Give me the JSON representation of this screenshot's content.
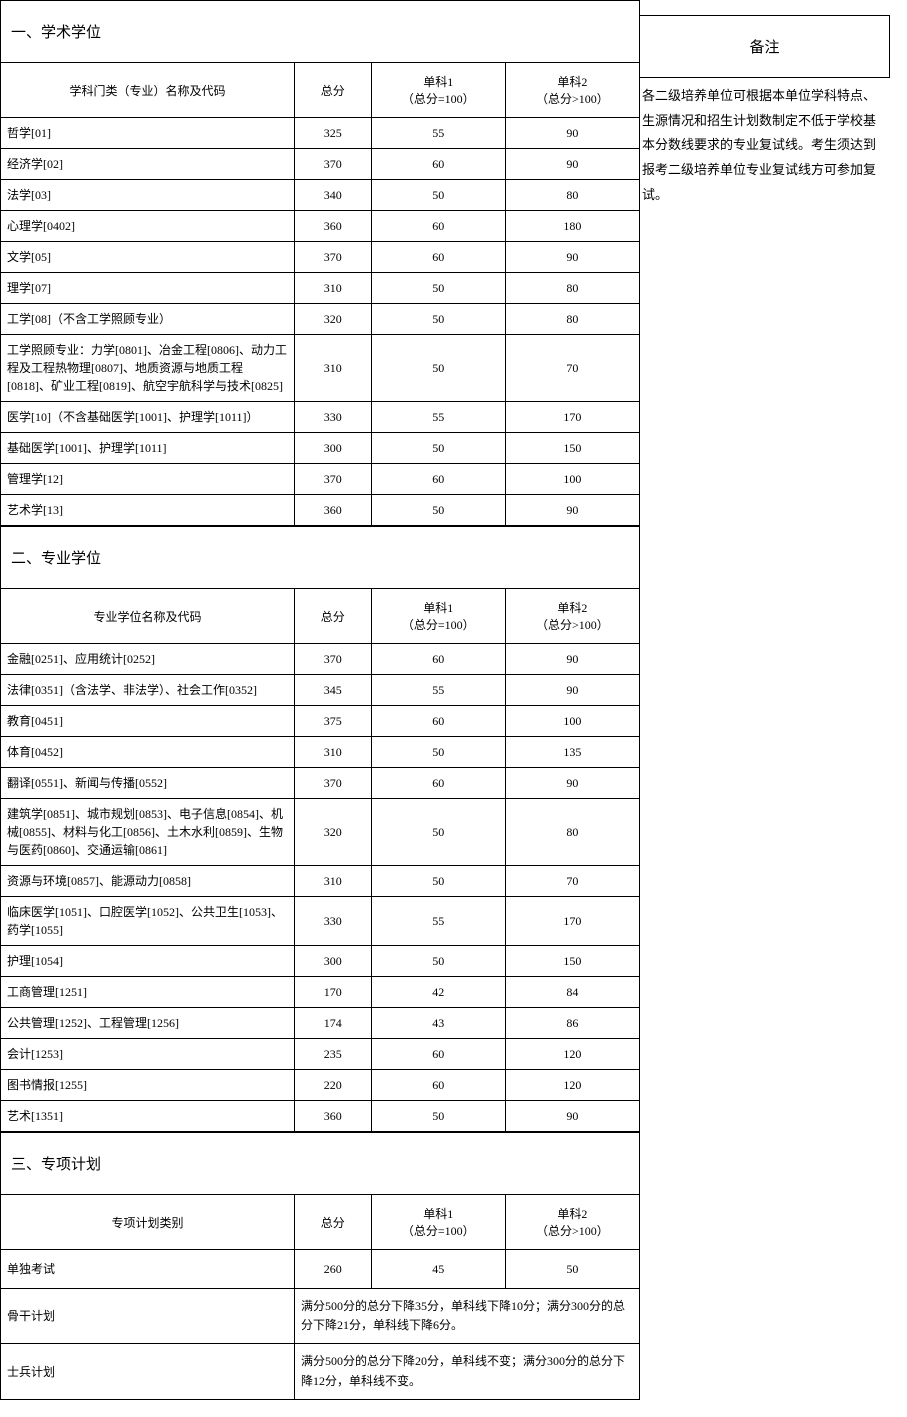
{
  "notes_header": "备注",
  "notes_text": "各二级培养单位可根据本单位学科特点、生源情况和招生计划数制定不低于学校基本分数线要求的专业复试线。考生须达到报考二级培养单位专业复试线方可参加复试。",
  "section1": {
    "title": "一、学术学位",
    "headers": {
      "name": "学科门类（专业）名称及代码",
      "total": "总分",
      "sub1_line1": "单科1",
      "sub1_line2": "（总分=100）",
      "sub2_line1": "单科2",
      "sub2_line2": "（总分>100）"
    },
    "rows": [
      {
        "name": "哲学[01]",
        "total": "325",
        "s1": "55",
        "s2": "90"
      },
      {
        "name": "经济学[02]",
        "total": "370",
        "s1": "60",
        "s2": "90"
      },
      {
        "name": "法学[03]",
        "total": "340",
        "s1": "50",
        "s2": "80"
      },
      {
        "name": "心理学[0402]",
        "total": "360",
        "s1": "60",
        "s2": "180"
      },
      {
        "name": "文学[05]",
        "total": "370",
        "s1": "60",
        "s2": "90"
      },
      {
        "name": "理学[07]",
        "total": "310",
        "s1": "50",
        "s2": "80"
      },
      {
        "name": "工学[08]（不含工学照顾专业）",
        "total": "320",
        "s1": "50",
        "s2": "80"
      },
      {
        "name": "工学照顾专业：力学[0801]、冶金工程[0806]、动力工程及工程热物理[0807]、地质资源与地质工程 [0818]、矿业工程[0819]、航空宇航科学与技术[0825]",
        "total": "310",
        "s1": "50",
        "s2": "70"
      },
      {
        "name": "医学[10]（不含基础医学[1001]、护理学[1011]）",
        "total": "330",
        "s1": "55",
        "s2": "170"
      },
      {
        "name": "基础医学[1001]、护理学[1011]",
        "total": "300",
        "s1": "50",
        "s2": "150"
      },
      {
        "name": "管理学[12]",
        "total": "370",
        "s1": "60",
        "s2": "100"
      },
      {
        "name": "艺术学[13]",
        "total": "360",
        "s1": "50",
        "s2": "90"
      }
    ]
  },
  "section2": {
    "title": "二、专业学位",
    "headers": {
      "name": "专业学位名称及代码",
      "total": "总分",
      "sub1_line1": "单科1",
      "sub1_line2": "（总分=100）",
      "sub2_line1": "单科2",
      "sub2_line2": "（总分>100）"
    },
    "rows": [
      {
        "name": "金融[0251]、应用统计[0252]",
        "total": "370",
        "s1": "60",
        "s2": "90"
      },
      {
        "name": "法律[0351]（含法学、非法学）、社会工作[0352]",
        "total": "345",
        "s1": "55",
        "s2": "90"
      },
      {
        "name": "教育[0451]",
        "total": "375",
        "s1": "60",
        "s2": "100"
      },
      {
        "name": "体育[0452]",
        "total": "310",
        "s1": "50",
        "s2": "135"
      },
      {
        "name": "翻译[0551]、新闻与传播[0552]",
        "total": "370",
        "s1": "60",
        "s2": "90"
      },
      {
        "name": "建筑学[0851]、城市规划[0853]、电子信息[0854]、机械[0855]、材料与化工[0856]、土木水利[0859]、生物与医药[0860]、交通运输[0861]",
        "total": "320",
        "s1": "50",
        "s2": "80"
      },
      {
        "name": "资源与环境[0857]、能源动力[0858]",
        "total": "310",
        "s1": "50",
        "s2": "70"
      },
      {
        "name": "临床医学[1051]、口腔医学[1052]、公共卫生[1053]、药学[1055]",
        "total": "330",
        "s1": "55",
        "s2": "170"
      },
      {
        "name": "护理[1054]",
        "total": "300",
        "s1": "50",
        "s2": "150"
      },
      {
        "name": "工商管理[1251]",
        "total": "170",
        "s1": "42",
        "s2": "84"
      },
      {
        "name": "公共管理[1252]、工程管理[1256]",
        "total": "174",
        "s1": "43",
        "s2": "86"
      },
      {
        "name": "会计[1253]",
        "total": "235",
        "s1": "60",
        "s2": "120"
      },
      {
        "name": "图书情报[1255]",
        "total": "220",
        "s1": "60",
        "s2": "120"
      },
      {
        "name": "艺术[1351]",
        "total": "360",
        "s1": "50",
        "s2": "90"
      }
    ]
  },
  "section3": {
    "title": "三、专项计划",
    "headers": {
      "name": "专项计划类别",
      "total": "总分",
      "sub1_line1": "单科1",
      "sub1_line2": "（总分=100）",
      "sub2_line1": "单科2",
      "sub2_line2": "（总分>100）"
    },
    "rows": [
      {
        "name": "单独考试",
        "total": "260",
        "s1": "45",
        "s2": "50",
        "type": "normal"
      },
      {
        "name": "骨干计划",
        "desc": "满分500分的总分下降35分，单科线下降10分；满分300分的总分下降21分，单科线下降6分。",
        "type": "desc"
      },
      {
        "name": "士兵计划",
        "desc": "满分500分的总分下降20分，单科线不变；满分300分的总分下降12分，单科线不变。",
        "type": "desc"
      }
    ]
  }
}
